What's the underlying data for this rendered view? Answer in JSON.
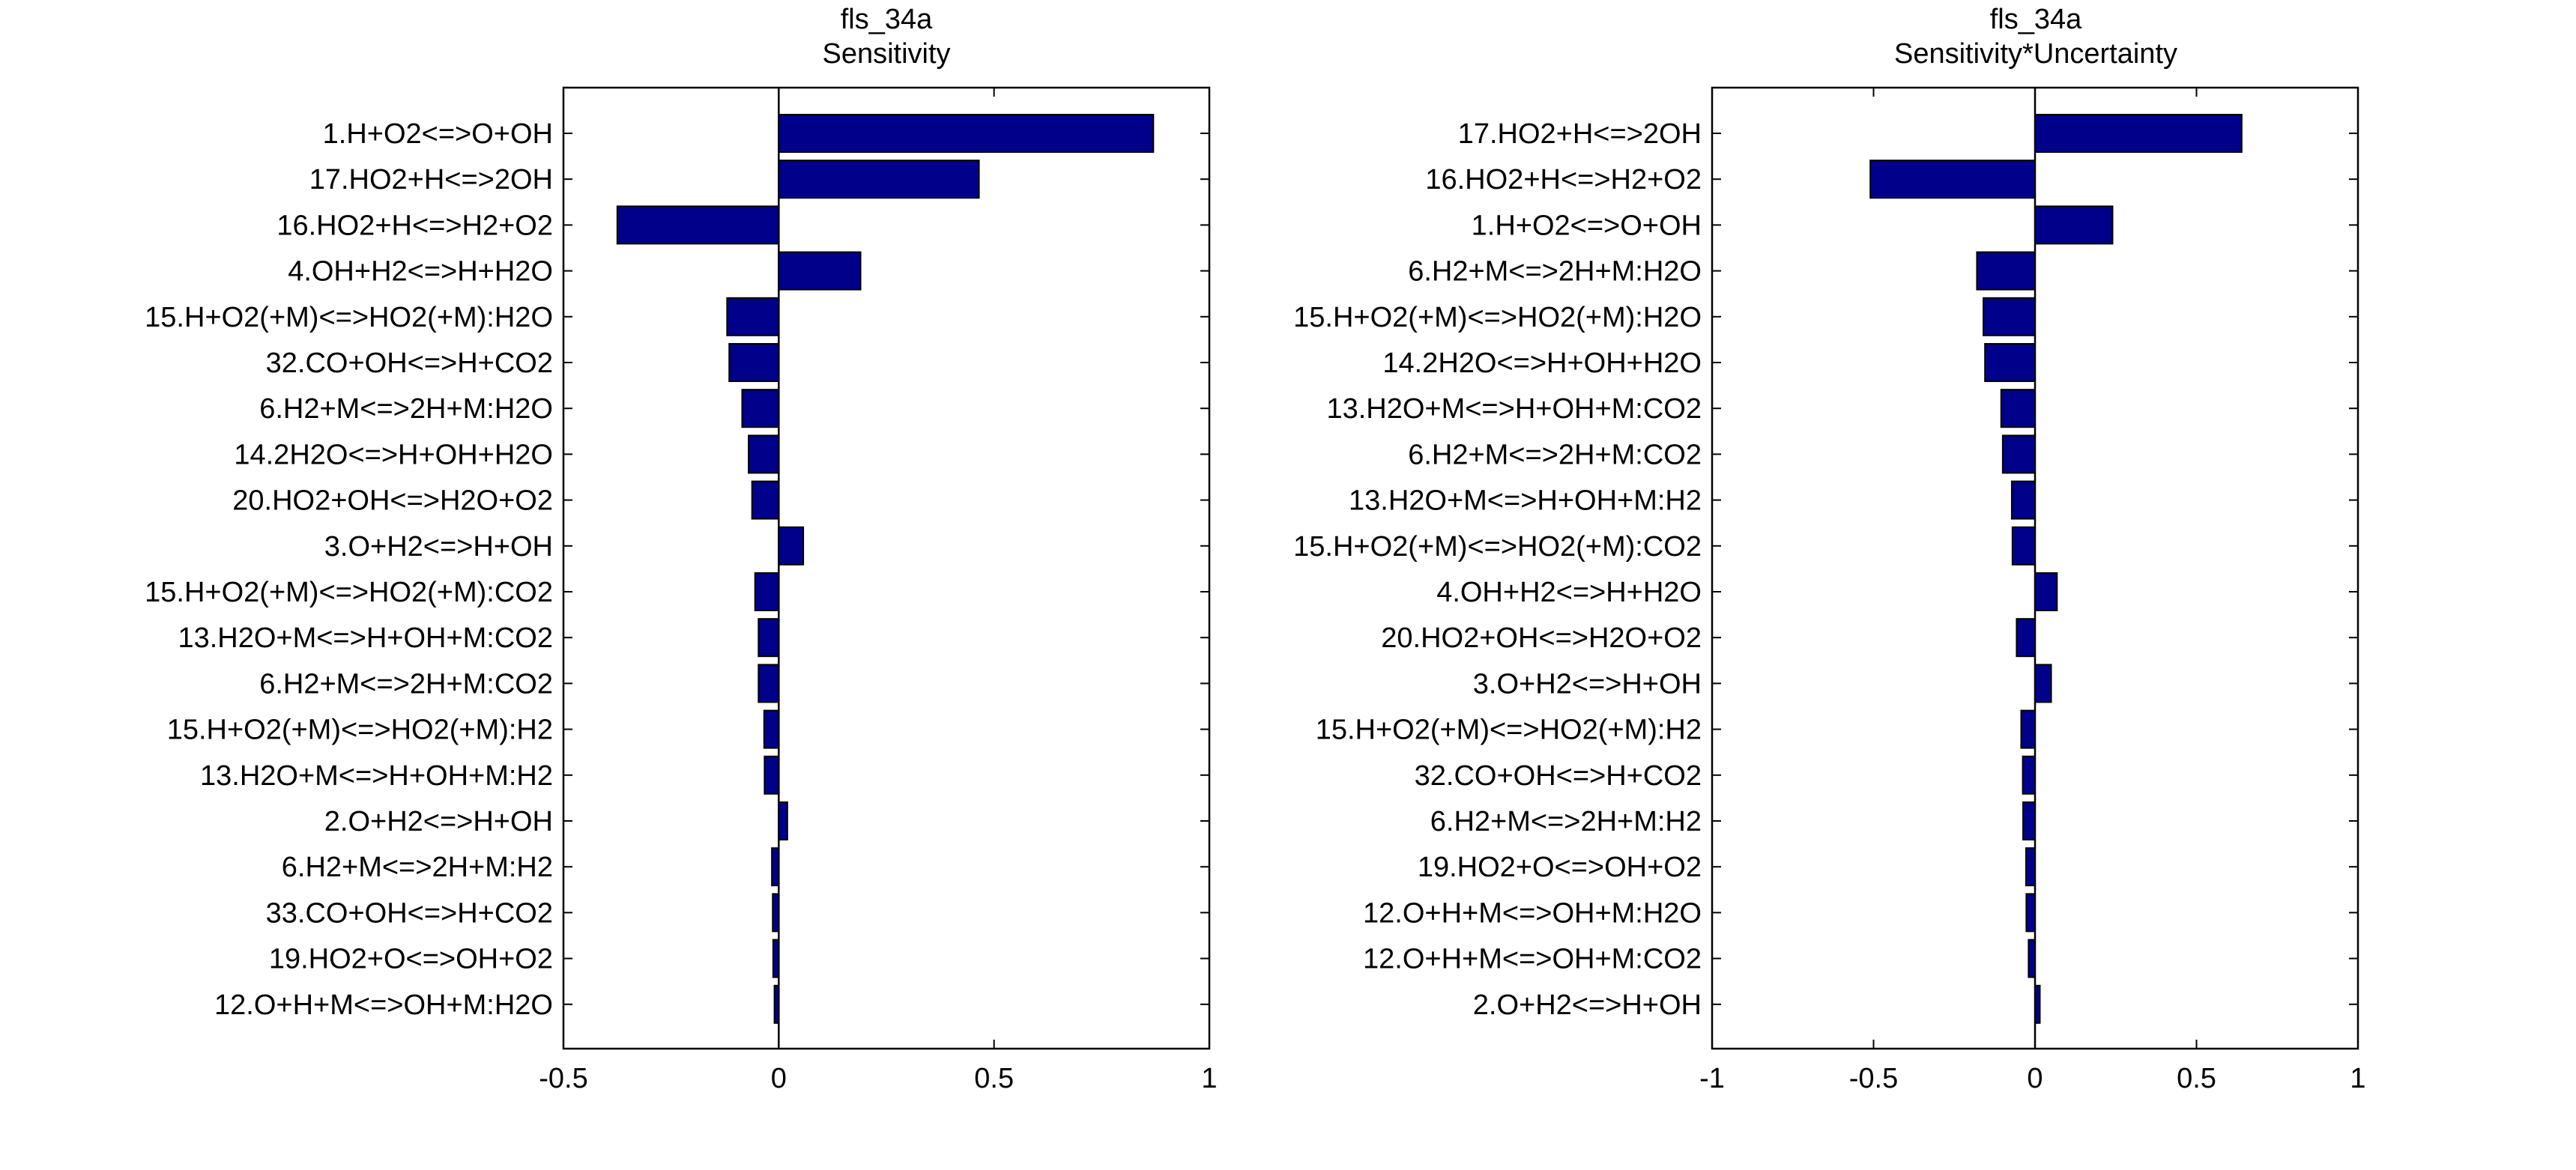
{
  "figure": {
    "bar_color": "#00008B",
    "edge_color": "#000000",
    "background": "#FFFFFF"
  },
  "chart_data": [
    {
      "type": "bar",
      "orientation": "horizontal",
      "title": "fls_34a",
      "subtitle": "Sensitivity",
      "xlabel": "",
      "ylabel": "",
      "xlim": [
        -0.5,
        1
      ],
      "xticks": [
        "-0.5",
        "0",
        "0.5",
        "1"
      ],
      "xtick_values": [
        -0.5,
        0,
        0.5,
        1
      ],
      "categories": [
        "1.H+O2<=>O+OH",
        "17.HO2+H<=>2OH",
        "16.HO2+H<=>H2+O2",
        "4.OH+H2<=>H+H2O",
        "15.H+O2(+M)<=>HO2(+M):H2O",
        "32.CO+OH<=>H+CO2",
        "6.H2+M<=>2H+M:H2O",
        "14.2H2O<=>H+OH+H2O",
        "20.HO2+OH<=>H2O+O2",
        "3.O+H2<=>H+OH",
        "15.H+O2(+M)<=>HO2(+M):CO2",
        "13.H2O+M<=>H+OH+M:CO2",
        "6.H2+M<=>2H+M:CO2",
        "15.H+O2(+M)<=>HO2(+M):H2",
        "13.H2O+M<=>H+OH+M:H2",
        "2.O+H2<=>H+OH",
        "6.H2+M<=>2H+M:H2",
        "33.CO+OH<=>H+CO2",
        "19.HO2+O<=>OH+O2",
        "12.O+H+M<=>OH+M:H2O"
      ],
      "values": [
        0.87,
        0.465,
        -0.375,
        0.19,
        -0.12,
        -0.115,
        -0.085,
        -0.07,
        -0.062,
        0.057,
        -0.055,
        -0.047,
        -0.047,
        -0.034,
        -0.033,
        0.02,
        -0.016,
        -0.014,
        -0.013,
        -0.01
      ]
    },
    {
      "type": "bar",
      "orientation": "horizontal",
      "title": "fls_34a",
      "subtitle": "Sensitivity*Uncertainty",
      "xlabel": "",
      "ylabel": "",
      "xlim": [
        -1,
        1
      ],
      "xticks": [
        "-1",
        "-0.5",
        "0",
        "0.5",
        "1"
      ],
      "xtick_values": [
        -1,
        -0.5,
        0,
        0.5,
        1
      ],
      "categories": [
        "17.HO2+H<=>2OH",
        "16.HO2+H<=>H2+O2",
        "1.H+O2<=>O+OH",
        "6.H2+M<=>2H+M:H2O",
        "15.H+O2(+M)<=>HO2(+M):H2O",
        "14.2H2O<=>H+OH+H2O",
        "13.H2O+M<=>H+OH+M:CO2",
        "6.H2+M<=>2H+M:CO2",
        "13.H2O+M<=>H+OH+M:H2",
        "15.H+O2(+M)<=>HO2(+M):CO2",
        "4.OH+H2<=>H+H2O",
        "20.HO2+OH<=>H2O+O2",
        "3.O+H2<=>H+OH",
        "15.H+O2(+M)<=>HO2(+M):H2",
        "32.CO+OH<=>H+CO2",
        "6.H2+M<=>2H+M:H2",
        "19.HO2+O<=>OH+O2",
        "12.O+H+M<=>OH+M:H2O",
        "12.O+H+M<=>OH+M:CO2",
        "2.O+H2<=>H+OH"
      ],
      "values": [
        0.64,
        -0.51,
        0.24,
        -0.18,
        -0.16,
        -0.155,
        -0.105,
        -0.1,
        -0.072,
        -0.07,
        0.068,
        -0.057,
        0.05,
        -0.043,
        -0.038,
        -0.037,
        -0.028,
        -0.027,
        -0.02,
        0.015
      ]
    }
  ]
}
